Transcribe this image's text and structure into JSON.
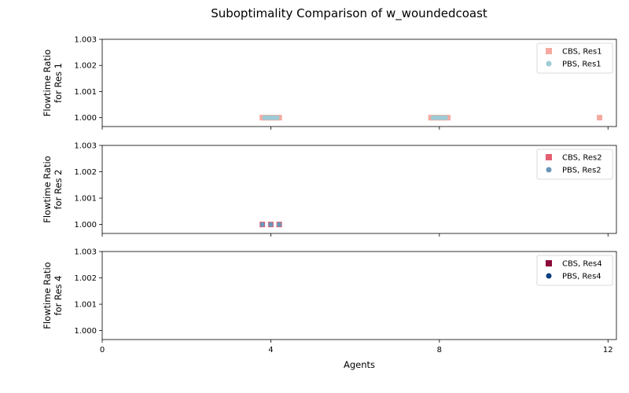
{
  "chart_data": {
    "type": "scatter",
    "title": "Suboptimality Comparison of w_woundedcoast",
    "xlabel": "Agents",
    "xlim": [
      0,
      12.2
    ],
    "xticks": [
      0,
      4,
      8,
      12
    ],
    "xtick_labels": [
      "0",
      "4",
      "8",
      "12"
    ],
    "ylim": [
      0.99966,
      1.003
    ],
    "yticks": [
      1.0,
      1.001,
      1.002,
      1.003
    ],
    "ytick_labels": [
      "1.000",
      "1.001",
      "1.002",
      "1.003"
    ],
    "legend_placement": "top-right",
    "subplots": [
      {
        "ylabel_lines": [
          "Flowtime Ratio",
          "for Res 1"
        ],
        "series": [
          {
            "name": "CBS, Res1",
            "marker": "square",
            "color": "#f4aaa0",
            "x": [
              3.8,
              3.85,
              3.9,
              3.95,
              4.0,
              4.05,
              4.1,
              4.15,
              4.2,
              7.8,
              7.85,
              7.9,
              7.95,
              8.0,
              8.05,
              8.1,
              8.15,
              8.2,
              11.8
            ],
            "y": [
              1.0,
              1.0,
              1.0,
              1.0,
              1.0,
              1.0,
              1.0,
              1.0,
              1.0,
              1.0,
              1.0,
              1.0,
              1.0,
              1.0,
              1.0,
              1.0,
              1.0,
              1.0,
              1.0
            ]
          },
          {
            "name": "PBS, Res1",
            "marker": "circle",
            "color": "#9ccbd6",
            "x": [
              3.85,
              3.9,
              3.95,
              4.0,
              4.05,
              4.1,
              4.15,
              7.85,
              7.9,
              7.95,
              8.0,
              8.05,
              8.1,
              8.15
            ],
            "y": [
              1.0,
              1.0,
              1.0,
              1.0,
              1.0,
              1.0,
              1.0,
              1.0,
              1.0,
              1.0,
              1.0,
              1.0,
              1.0,
              1.0
            ]
          }
        ]
      },
      {
        "ylabel_lines": [
          "Flowtime Ratio",
          "for Res 2"
        ],
        "series": [
          {
            "name": "CBS, Res2",
            "marker": "square",
            "color": "#e55f72",
            "x": [
              3.8,
              4.0,
              4.2
            ],
            "y": [
              1.0,
              1.0,
              1.0
            ]
          },
          {
            "name": "PBS, Res2",
            "marker": "circle",
            "color": "#6a96ba",
            "x": [
              3.8,
              4.0,
              4.2
            ],
            "y": [
              1.0,
              1.0,
              1.0
            ]
          }
        ]
      },
      {
        "ylabel_lines": [
          "Flowtime Ratio",
          "for Res 4"
        ],
        "series": [
          {
            "name": "CBS, Res4",
            "marker": "square",
            "color": "#8b0a3a",
            "x": [],
            "y": []
          },
          {
            "name": "PBS, Res4",
            "marker": "circle",
            "color": "#0d3f80",
            "x": [],
            "y": []
          }
        ]
      }
    ]
  }
}
